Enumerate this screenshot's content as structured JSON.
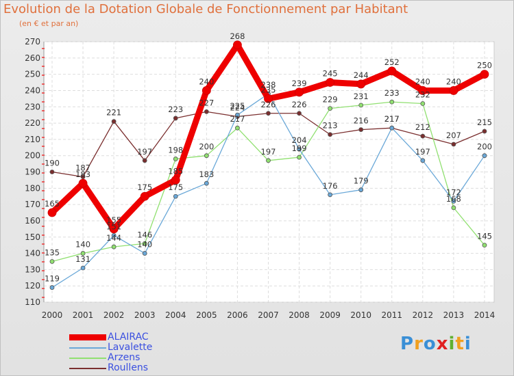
{
  "title": "Evolution de la Dotation Globale de Fonctionnement par Habitant",
  "subtitle": "(en € et par an)",
  "logo": {
    "letters": [
      "P",
      "r",
      "o",
      "x",
      "i",
      "t",
      "i"
    ],
    "colors": [
      "#3a8fd6",
      "#f0a020",
      "#3a8fd6",
      "#e02020",
      "#60b030",
      "#f0a020",
      "#3a8fd6"
    ]
  },
  "chart_data": {
    "type": "line",
    "title": "Evolution de la Dotation Globale de Fonctionnement par Habitant",
    "subtitle": "(en € et par an)",
    "x": [
      "2000",
      "2001",
      "2002",
      "2003",
      "2004",
      "2005",
      "2006",
      "2007",
      "2008",
      "2009",
      "2010",
      "2011",
      "2012",
      "2013",
      "2014"
    ],
    "ylim": [
      110,
      270
    ],
    "yticks": [
      110,
      120,
      130,
      140,
      150,
      160,
      170,
      180,
      190,
      200,
      210,
      220,
      230,
      240,
      250,
      260,
      270
    ],
    "grid": true,
    "legend_position": "bottom-left",
    "series": [
      {
        "name": "ALAIRAC",
        "color": "#ee0000",
        "values": [
          165,
          183,
          155,
          175,
          185,
          240,
          268,
          235,
          239,
          245,
          244,
          252,
          240,
          240,
          250
        ]
      },
      {
        "name": "Lavalette",
        "color": "#6aa8d8",
        "values": [
          119,
          131,
          151,
          140,
          175,
          183,
          225,
          238,
          204,
          176,
          179,
          217,
          197,
          172,
          200
        ]
      },
      {
        "name": "Arzens",
        "color": "#90e070",
        "values": [
          135,
          140,
          144,
          146,
          198,
          200,
          217,
          197,
          199,
          229,
          231,
          233,
          232,
          168,
          145
        ]
      },
      {
        "name": "Roullens",
        "color": "#7a2e2e",
        "values": [
          190,
          187,
          221,
          197,
          223,
          227,
          224,
          226,
          226,
          213,
          216,
          217,
          212,
          207,
          215
        ]
      }
    ]
  }
}
